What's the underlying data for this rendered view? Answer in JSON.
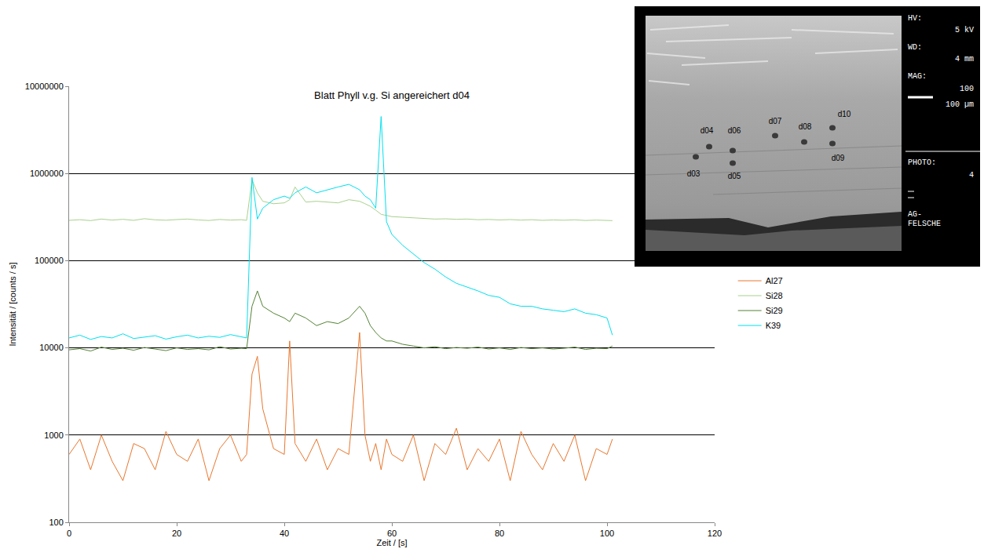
{
  "chart_data": {
    "type": "line",
    "title": "Blatt Phyll v.g. Si angereichert d04",
    "x_label": "Zeit / [s]",
    "y_label": "Intensität / [counts / s]",
    "log": "y",
    "grid": true,
    "legend": "right",
    "xlim": [
      0,
      120
    ],
    "xticks": [
      0,
      20,
      40,
      60,
      80,
      100,
      120
    ],
    "ylim": [
      100,
      10000000
    ],
    "yticks": [
      100,
      1000,
      10000,
      100000,
      1000000,
      10000000
    ],
    "x": [
      0,
      2,
      4,
      6,
      8,
      10,
      12,
      14,
      16,
      18,
      20,
      22,
      24,
      26,
      28,
      30,
      32,
      33,
      34,
      35,
      36,
      38,
      40,
      41,
      42,
      44,
      46,
      48,
      50,
      52,
      54,
      55,
      56,
      57,
      58,
      59,
      60,
      62,
      64,
      66,
      68,
      70,
      72,
      74,
      76,
      78,
      80,
      82,
      84,
      86,
      88,
      90,
      92,
      94,
      96,
      98,
      100,
      101
    ],
    "series": [
      {
        "name": "Al27",
        "color": "#e8772e",
        "values": [
          600,
          900,
          400,
          1000,
          500,
          300,
          800,
          700,
          400,
          1100,
          600,
          500,
          900,
          300,
          700,
          1000,
          500,
          600,
          5000,
          8000,
          2000,
          700,
          600,
          12000,
          800,
          500,
          900,
          400,
          700,
          600,
          15000,
          1000,
          500,
          800,
          400,
          900,
          600,
          500,
          1000,
          300,
          800,
          600,
          1200,
          400,
          700,
          500,
          900,
          300,
          1100,
          600,
          400,
          800,
          500,
          1000,
          300,
          700,
          600,
          900
        ]
      },
      {
        "name": "Si28",
        "color": "#a9d18e",
        "values": [
          290000,
          295000,
          288000,
          300000,
          292000,
          298000,
          290000,
          303000,
          294000,
          291000,
          296000,
          300000,
          293000,
          289000,
          297000,
          292000,
          295000,
          290000,
          850000,
          600000,
          480000,
          450000,
          460000,
          500000,
          700000,
          470000,
          480000,
          470000,
          460000,
          500000,
          480000,
          450000,
          420000,
          380000,
          340000,
          330000,
          320000,
          315000,
          310000,
          305000,
          300000,
          302000,
          298000,
          300000,
          295000,
          297000,
          293000,
          296000,
          292000,
          295000,
          290000,
          293000,
          291000,
          294000,
          289000,
          292000,
          290000,
          288000
        ]
      },
      {
        "name": "Si29",
        "color": "#548235",
        "values": [
          9500,
          9800,
          9200,
          10200,
          9600,
          9900,
          9400,
          10100,
          9700,
          9300,
          10000,
          9600,
          9800,
          9500,
          10300,
          9700,
          9900,
          9800,
          30000,
          45000,
          30000,
          25000,
          22000,
          20000,
          25000,
          22000,
          18000,
          20000,
          19000,
          22000,
          30000,
          25000,
          18000,
          15000,
          13000,
          12000,
          12000,
          11000,
          10500,
          10000,
          10300,
          9800,
          10100,
          9900,
          10200,
          9700,
          10000,
          9600,
          10100,
          9800,
          10000,
          9700,
          9900,
          10200,
          9600,
          9900,
          9800,
          10500
        ]
      },
      {
        "name": "K39",
        "color": "#00e0ee",
        "values": [
          13000,
          14000,
          12500,
          13500,
          13000,
          14500,
          12800,
          13200,
          13800,
          12600,
          13400,
          14000,
          13000,
          13600,
          13200,
          14200,
          13500,
          13000,
          900000,
          300000,
          400000,
          500000,
          550000,
          520000,
          600000,
          700000,
          600000,
          650000,
          700000,
          750000,
          650000,
          550000,
          500000,
          400000,
          4500000,
          280000,
          200000,
          150000,
          120000,
          95000,
          80000,
          65000,
          55000,
          50000,
          45000,
          40000,
          38000,
          32000,
          30000,
          30000,
          28000,
          27000,
          26000,
          28000,
          25000,
          24000,
          22000,
          14000
        ]
      }
    ]
  },
  "inset": {
    "panel": [
      "HV:",
      "5 kV",
      "WD:",
      "4 mm",
      "MAG:",
      "100",
      "100 µm",
      "PHOTO:",
      "4",
      "AG-",
      "FELSCHE"
    ],
    "spots": [
      "d04",
      "d06",
      "d03",
      "d05",
      "d07",
      "d08",
      "d10",
      "d09"
    ]
  }
}
